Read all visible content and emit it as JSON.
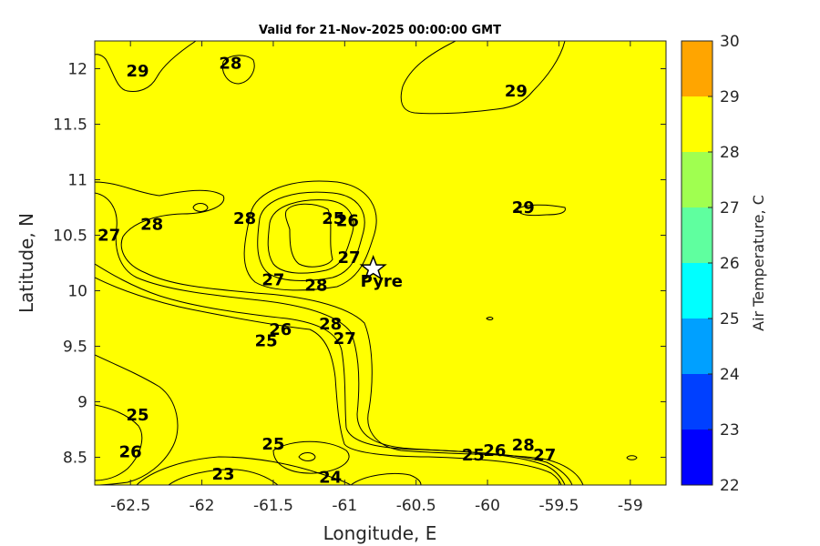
{
  "title": "Valid for 21-Nov-2025 00:00:00 GMT",
  "x_axis": {
    "label": "Longitude, E",
    "range": [
      -62.75,
      -58.75
    ],
    "ticks": [
      -62.5,
      -62,
      -61.5,
      -61,
      -60.5,
      -60,
      -59.5,
      -59
    ],
    "tick_labels": [
      "-62.5",
      "-62",
      "-61.5",
      "-61",
      "-60.5",
      "-60",
      "-59.5",
      "-59"
    ]
  },
  "y_axis": {
    "label": "Latitude, N",
    "range": [
      8.25,
      12.25
    ],
    "ticks": [
      8.5,
      9,
      9.5,
      10,
      10.5,
      11,
      11.5,
      12
    ],
    "tick_labels": [
      "8.5",
      "9",
      "9.5",
      "10",
      "10.5",
      "11",
      "11.5",
      "12"
    ]
  },
  "colorbar": {
    "label": "Air Temperature, C",
    "levels": [
      22,
      23,
      24,
      25,
      26,
      27,
      28,
      29,
      30
    ],
    "tick_labels": [
      "22",
      "23",
      "24",
      "25",
      "26",
      "27",
      "28",
      "29",
      "30"
    ],
    "colors": [
      "#0000ff",
      "#0040ff",
      "#00a0ff",
      "#00ffff",
      "#5fff9f",
      "#a0ff50",
      "#ffff00",
      "#ffa500",
      "#ff5a00"
    ]
  },
  "marker": {
    "name": "Pyre",
    "lon": -60.8,
    "lat": 10.2
  },
  "contour_labels": [
    {
      "text": "29",
      "lon": -62.45,
      "lat": 11.98
    },
    {
      "text": "28",
      "lon": -61.8,
      "lat": 12.05
    },
    {
      "text": "29",
      "lon": -59.8,
      "lat": 11.8
    },
    {
      "text": "29",
      "lon": -59.75,
      "lat": 10.75
    },
    {
      "text": "27",
      "lon": -62.65,
      "lat": 10.5
    },
    {
      "text": "28",
      "lon": -62.35,
      "lat": 10.6
    },
    {
      "text": "28",
      "lon": -61.7,
      "lat": 10.65
    },
    {
      "text": "25",
      "lon": -61.08,
      "lat": 10.65
    },
    {
      "text": "26",
      "lon": -60.98,
      "lat": 10.63
    },
    {
      "text": "27",
      "lon": -61.5,
      "lat": 10.1
    },
    {
      "text": "28",
      "lon": -61.2,
      "lat": 10.05
    },
    {
      "text": "27",
      "lon": -60.97,
      "lat": 10.3
    },
    {
      "text": "26",
      "lon": -61.45,
      "lat": 9.65
    },
    {
      "text": "25",
      "lon": -61.55,
      "lat": 9.55
    },
    {
      "text": "28",
      "lon": -61.1,
      "lat": 9.7
    },
    {
      "text": "27",
      "lon": -61.0,
      "lat": 9.57
    },
    {
      "text": "25",
      "lon": -62.45,
      "lat": 8.88
    },
    {
      "text": "26",
      "lon": -62.5,
      "lat": 8.55
    },
    {
      "text": "25",
      "lon": -61.5,
      "lat": 8.62
    },
    {
      "text": "23",
      "lon": -61.85,
      "lat": 8.35
    },
    {
      "text": "24",
      "lon": -61.1,
      "lat": 8.32
    },
    {
      "text": "25",
      "lon": -60.1,
      "lat": 8.52
    },
    {
      "text": "26",
      "lon": -59.95,
      "lat": 8.56
    },
    {
      "text": "28",
      "lon": -59.75,
      "lat": 8.61
    },
    {
      "text": "27",
      "lon": -59.6,
      "lat": 8.52
    }
  ]
}
